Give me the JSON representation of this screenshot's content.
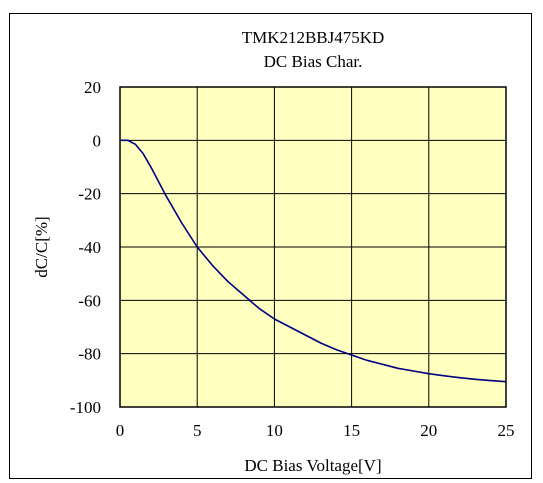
{
  "chart_data": {
    "type": "line",
    "title": "TMK212BBJ475KD",
    "subtitle": "DC Bias Char.",
    "xlabel": "DC Bias Voltage[V]",
    "ylabel": "dC/C[%]",
    "xlim": [
      0,
      25
    ],
    "ylim": [
      -100,
      20
    ],
    "xticks": [
      0,
      5,
      10,
      15,
      20,
      25
    ],
    "yticks": [
      20,
      0,
      -20,
      -40,
      -60,
      -80,
      -100
    ],
    "grid": true,
    "plot_background": "#ffffc0",
    "series": [
      {
        "color": "#000080",
        "x": [
          0,
          0.5,
          1,
          1.5,
          2,
          3,
          4,
          5,
          6,
          7,
          8,
          9,
          10,
          11,
          12,
          13,
          14,
          15,
          16,
          17,
          18,
          19,
          20,
          21,
          22,
          23,
          24,
          25
        ],
        "y": [
          0,
          0,
          -1.5,
          -5,
          -10,
          -21,
          -31,
          -40,
          -47,
          -53,
          -58,
          -63,
          -67,
          -70,
          -73,
          -76,
          -78.5,
          -80.5,
          -82.5,
          -84,
          -85.5,
          -86.5,
          -87.5,
          -88.3,
          -89,
          -89.6,
          -90.1,
          -90.5
        ]
      }
    ]
  }
}
